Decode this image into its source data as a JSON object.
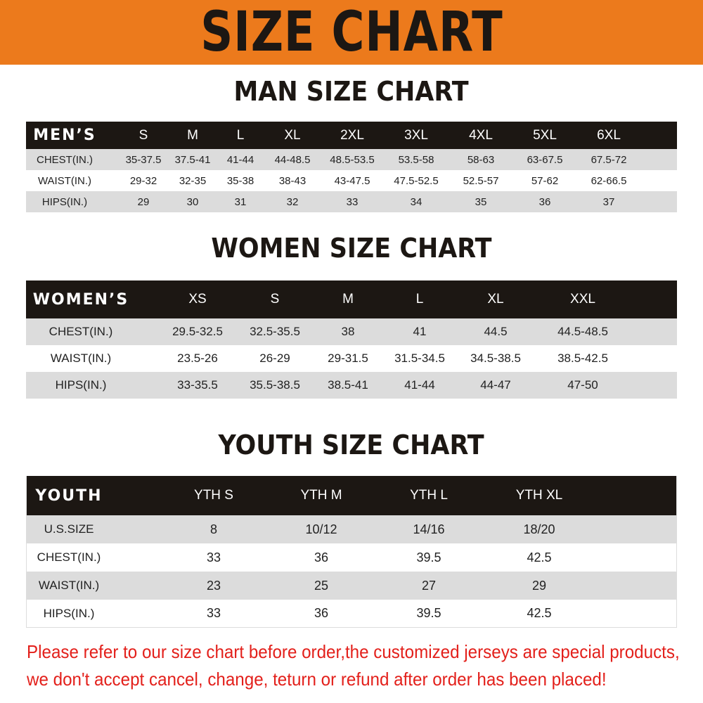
{
  "banner_title": "SIZE CHART",
  "colors": {
    "banner": "#ec7a1c",
    "header_row": "#1c1713",
    "shaded_row": "#dcdcdc",
    "notice": "#e3201b"
  },
  "men": {
    "title": "MAN SIZE CHART",
    "header": [
      "MEN’S",
      "S",
      "M",
      "L",
      "XL",
      "2XL",
      "3XL",
      "4XL",
      "5XL",
      "6XL"
    ],
    "rows": [
      [
        "CHEST(IN.)",
        "35-37.5",
        "37.5-41",
        "41-44",
        "44-48.5",
        "48.5-53.5",
        "53.5-58",
        "58-63",
        "63-67.5",
        "67.5-72"
      ],
      [
        "WAIST(IN.)",
        "29-32",
        "32-35",
        "35-38",
        "38-43",
        "43-47.5",
        "47.5-52.5",
        "52.5-57",
        "57-62",
        "62-66.5"
      ],
      [
        "HIPS(IN.)",
        "29",
        "30",
        "31",
        "32",
        "33",
        "34",
        "35",
        "36",
        "37"
      ]
    ]
  },
  "women": {
    "title": "WOMEN SIZE CHART",
    "header": [
      "WOMEN’S",
      "XS",
      "S",
      "M",
      "L",
      "XL",
      "XXL"
    ],
    "rows": [
      [
        "CHEST(IN.)",
        "29.5-32.5",
        "32.5-35.5",
        "38",
        "41",
        "44.5",
        "44.5-48.5"
      ],
      [
        "WAIST(IN.)",
        "23.5-26",
        "26-29",
        "29-31.5",
        "31.5-34.5",
        "34.5-38.5",
        "38.5-42.5"
      ],
      [
        "HIPS(IN.)",
        "33-35.5",
        "35.5-38.5",
        "38.5-41",
        "41-44",
        "44-47",
        "47-50"
      ]
    ]
  },
  "youth": {
    "title": "YOUTH SIZE CHART",
    "header": [
      "YOUTH",
      "YTH S",
      "YTH M",
      "YTH L",
      "YTH XL"
    ],
    "rows": [
      [
        "U.S.SIZE",
        "8",
        "10/12",
        "14/16",
        "18/20"
      ],
      [
        "CHEST(IN.)",
        "33",
        "36",
        "39.5",
        "42.5"
      ],
      [
        "WAIST(IN.)",
        "23",
        "25",
        "27",
        "29"
      ],
      [
        "HIPS(IN.)",
        "33",
        "36",
        "39.5",
        "42.5"
      ]
    ]
  },
  "notice": [
    "Please refer to our size chart before order,the customized jerseys are special products,",
    "we don't accept cancel, change, teturn or refund after order has been placed!"
  ]
}
